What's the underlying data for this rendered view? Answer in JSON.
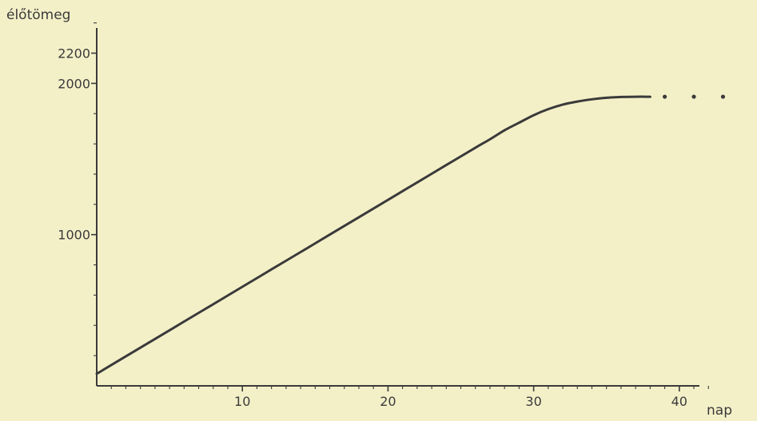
{
  "chart_data": {
    "type": "line",
    "title": "",
    "xlabel": "nap",
    "ylabel": "élőtömeg",
    "xlim": [
      0,
      45
    ],
    "ylim": [
      0,
      2400
    ],
    "x_ticks_labeled": [
      10,
      20,
      30,
      40
    ],
    "x_ticks_minor_step": 1,
    "y_ticks_labeled": [
      1000,
      2000,
      2200
    ],
    "y_ticks_minor_step": 200,
    "grid": false,
    "legend": "none",
    "line_color": "#3a3a3a",
    "series": [
      {
        "x": [
          0,
          2,
          4,
          6,
          8,
          10,
          12,
          14,
          16,
          18,
          20,
          22,
          24,
          26,
          27,
          28,
          29,
          30,
          31,
          32,
          33,
          34,
          35,
          36,
          37,
          38
        ],
        "values": [
          80,
          195,
          310,
          425,
          540,
          655,
          770,
          885,
          1000,
          1115,
          1230,
          1345,
          1460,
          1575,
          1630,
          1690,
          1740,
          1790,
          1830,
          1860,
          1880,
          1895,
          1905,
          1910,
          1912,
          1912
        ]
      }
    ],
    "continuation_dots": {
      "x": [
        39,
        41,
        43
      ],
      "y": 1912
    }
  }
}
